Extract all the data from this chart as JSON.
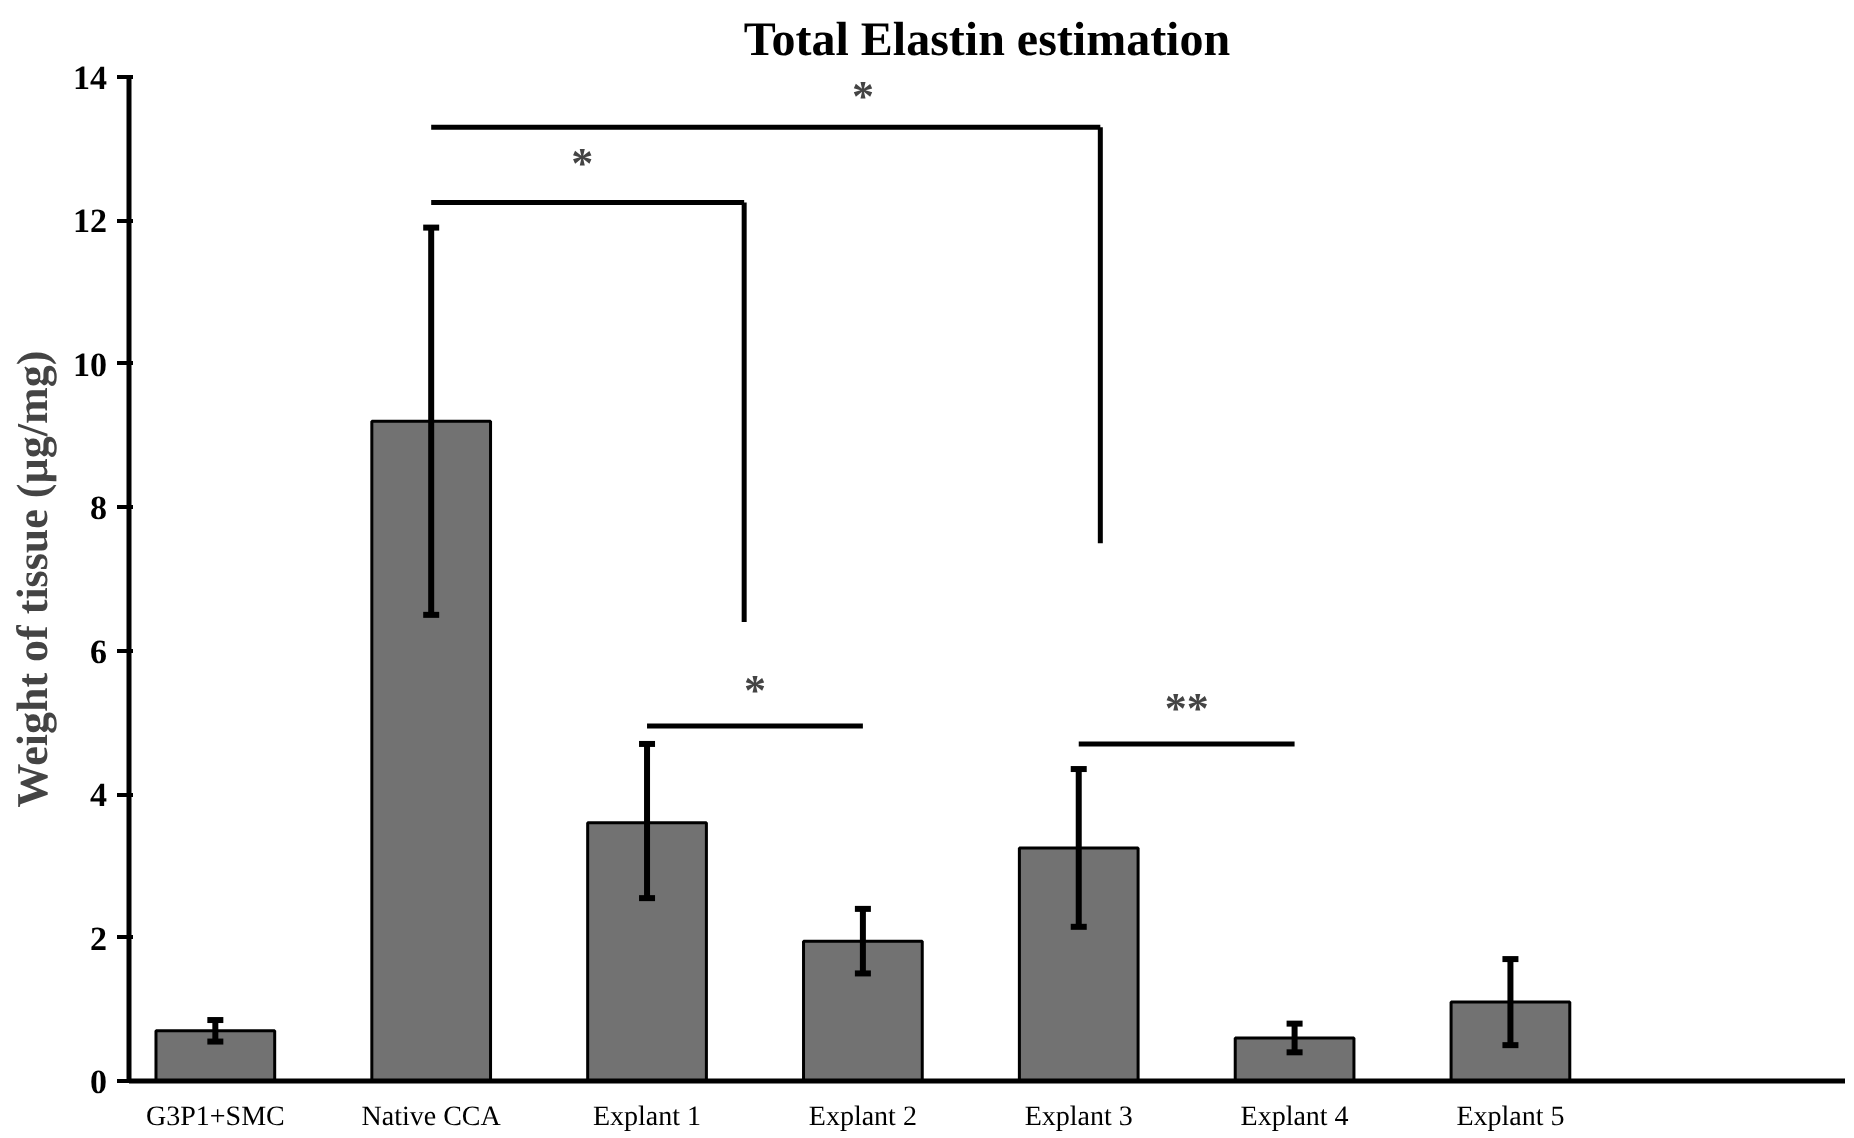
{
  "chart_data": {
    "type": "bar",
    "title": "Total Elastin estimation",
    "ylabel": "Weight of tissue (µg/mg)",
    "categories": [
      "G3P1+SMC",
      "Native CCA",
      "Explant 1",
      "Explant 2",
      "Explant 3",
      "Explant 4",
      "Explant 5"
    ],
    "values": [
      0.7,
      9.2,
      3.6,
      1.95,
      3.25,
      0.6,
      1.1
    ],
    "errors": [
      [
        0.55,
        0.85
      ],
      [
        6.5,
        11.9
      ],
      [
        2.55,
        4.7
      ],
      [
        1.5,
        2.4
      ],
      [
        2.15,
        4.35
      ],
      [
        0.4,
        0.8
      ],
      [
        0.5,
        1.7
      ]
    ],
    "color": "#595959",
    "ylim": [
      0,
      14
    ],
    "yticks": [
      0,
      2,
      4,
      6,
      8,
      10,
      12,
      14
    ],
    "grid": false,
    "annotations": [
      "*",
      "*",
      "*",
      "**"
    ]
  }
}
